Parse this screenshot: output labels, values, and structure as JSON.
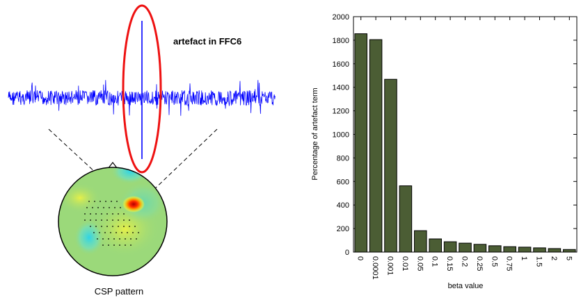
{
  "left_panel": {
    "annotation": "artefact in FFC6",
    "caption": "CSP pattern",
    "colors": {
      "signal": "#0000ff",
      "ellipse": "#ee1111",
      "head": "#9bd97a"
    }
  },
  "chart_data": {
    "type": "bar",
    "categories": [
      "0",
      "0.0001",
      "0.001",
      "0.01",
      "0.05",
      "0.1",
      "0.15",
      "0.2",
      "0.25",
      "0.5",
      "0.75",
      "1",
      "1.5",
      "2",
      "5"
    ],
    "values": [
      1855,
      1805,
      1468,
      563,
      182,
      112,
      88,
      76,
      66,
      54,
      46,
      42,
      36,
      30,
      22
    ],
    "xlabel": "beta value",
    "ylabel": "Percentage of artefact term",
    "yticks": [
      0,
      200,
      400,
      600,
      800,
      1000,
      1200,
      1400,
      1600,
      1800,
      2000
    ],
    "ylim": [
      0,
      2000
    ],
    "bar_color": "#4b5d34",
    "grid": false
  }
}
